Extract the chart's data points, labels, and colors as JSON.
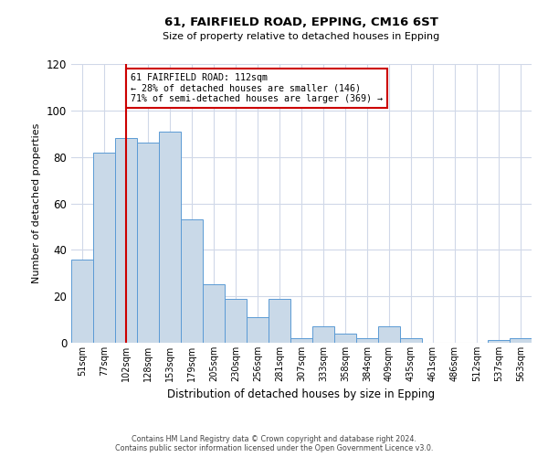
{
  "title": "61, FAIRFIELD ROAD, EPPING, CM16 6ST",
  "subtitle": "Size of property relative to detached houses in Epping",
  "xlabel": "Distribution of detached houses by size in Epping",
  "ylabel": "Number of detached properties",
  "bar_labels": [
    "51sqm",
    "77sqm",
    "102sqm",
    "128sqm",
    "153sqm",
    "179sqm",
    "205sqm",
    "230sqm",
    "256sqm",
    "281sqm",
    "307sqm",
    "333sqm",
    "358sqm",
    "384sqm",
    "409sqm",
    "435sqm",
    "461sqm",
    "486sqm",
    "512sqm",
    "537sqm",
    "563sqm"
  ],
  "bar_values": [
    36,
    82,
    88,
    86,
    91,
    53,
    25,
    19,
    11,
    19,
    2,
    7,
    4,
    2,
    7,
    2,
    0,
    0,
    0,
    1,
    2
  ],
  "bar_color": "#c9d9e8",
  "bar_edge_color": "#5b9bd5",
  "vline_x_idx": 2,
  "vline_color": "#cc0000",
  "annotation_text": "61 FAIRFIELD ROAD: 112sqm\n← 28% of detached houses are smaller (146)\n71% of semi-detached houses are larger (369) →",
  "annotation_box_color": "#ffffff",
  "annotation_box_edge": "#cc0000",
  "ylim": [
    0,
    120
  ],
  "yticks": [
    0,
    20,
    40,
    60,
    80,
    100,
    120
  ],
  "footer_line1": "Contains HM Land Registry data © Crown copyright and database right 2024.",
  "footer_line2": "Contains public sector information licensed under the Open Government Licence v3.0.",
  "background_color": "#ffffff",
  "grid_color": "#d0d8e8",
  "fig_width": 6.0,
  "fig_height": 5.0,
  "dpi": 100
}
